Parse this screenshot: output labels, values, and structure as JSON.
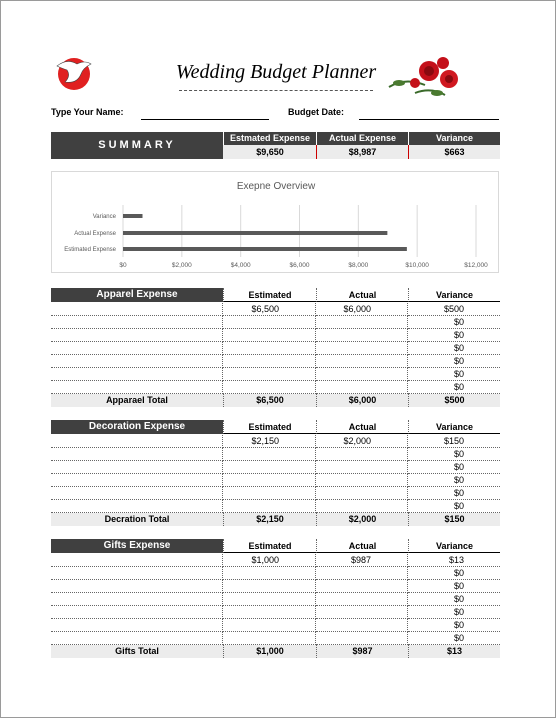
{
  "header": {
    "title": "Wedding Budget Planner",
    "name_label": "Type Your Name:",
    "date_label": "Budget Date:"
  },
  "summary": {
    "title": "SUMMARY",
    "columns": [
      "Estmated Expense",
      "Actual Expense",
      "Variance"
    ],
    "values": [
      "$9,650",
      "$8,987",
      "$663"
    ]
  },
  "chart_data": {
    "type": "bar",
    "orientation": "horizontal",
    "title": "Exepne Overview",
    "categories": [
      "Variance",
      "Actual Expense",
      "Estimated Expense"
    ],
    "values": [
      663,
      8987,
      9650
    ],
    "color": "#595959",
    "xlim": [
      0,
      12000
    ],
    "xticks": [
      {
        "value": 0,
        "label": "$0"
      },
      {
        "value": 2000,
        "label": "$2,000"
      },
      {
        "value": 4000,
        "label": "$4,000"
      },
      {
        "value": 6000,
        "label": "$6,000"
      },
      {
        "value": 8000,
        "label": "$8,000"
      },
      {
        "value": 10000,
        "label": "$10,000"
      },
      {
        "value": 12000,
        "label": "$12,000"
      }
    ],
    "grid": true
  },
  "sections": [
    {
      "title": "Apparel Expense",
      "columns": [
        "Estimated",
        "Actual",
        "Variance"
      ],
      "rows": [
        {
          "estimated": "$6,500",
          "actual": "$6,000",
          "variance": "$500"
        },
        {
          "variance": "$0"
        },
        {
          "variance": "$0"
        },
        {
          "variance": "$0"
        },
        {
          "variance": "$0"
        },
        {
          "variance": "$0"
        },
        {
          "variance": "$0"
        }
      ],
      "total": {
        "label": "Apparael Total",
        "estimated": "$6,500",
        "actual": "$6,000",
        "variance": "$500"
      }
    },
    {
      "title": "Decoration Expense",
      "columns": [
        "Estimated",
        "Actual",
        "Variance"
      ],
      "rows": [
        {
          "estimated": "$2,150",
          "actual": "$2,000",
          "variance": "$150"
        },
        {
          "variance": "$0"
        },
        {
          "variance": "$0"
        },
        {
          "variance": "$0"
        },
        {
          "variance": "$0"
        },
        {
          "variance": "$0"
        }
      ],
      "total": {
        "label": "Decration Total",
        "estimated": "$2,150",
        "actual": "$2,000",
        "variance": "$150"
      }
    },
    {
      "title": "Gifts Expense",
      "columns": [
        "Estimated",
        "Actual",
        "Variance"
      ],
      "rows": [
        {
          "estimated": "$1,000",
          "actual": "$987",
          "variance": "$13"
        },
        {
          "variance": "$0"
        },
        {
          "variance": "$0"
        },
        {
          "variance": "$0"
        },
        {
          "variance": "$0"
        },
        {
          "variance": "$0"
        },
        {
          "variance": "$0"
        }
      ],
      "total": {
        "label": "Gifts Total",
        "estimated": "$1,000",
        "actual": "$987",
        "variance": "$13"
      }
    }
  ]
}
